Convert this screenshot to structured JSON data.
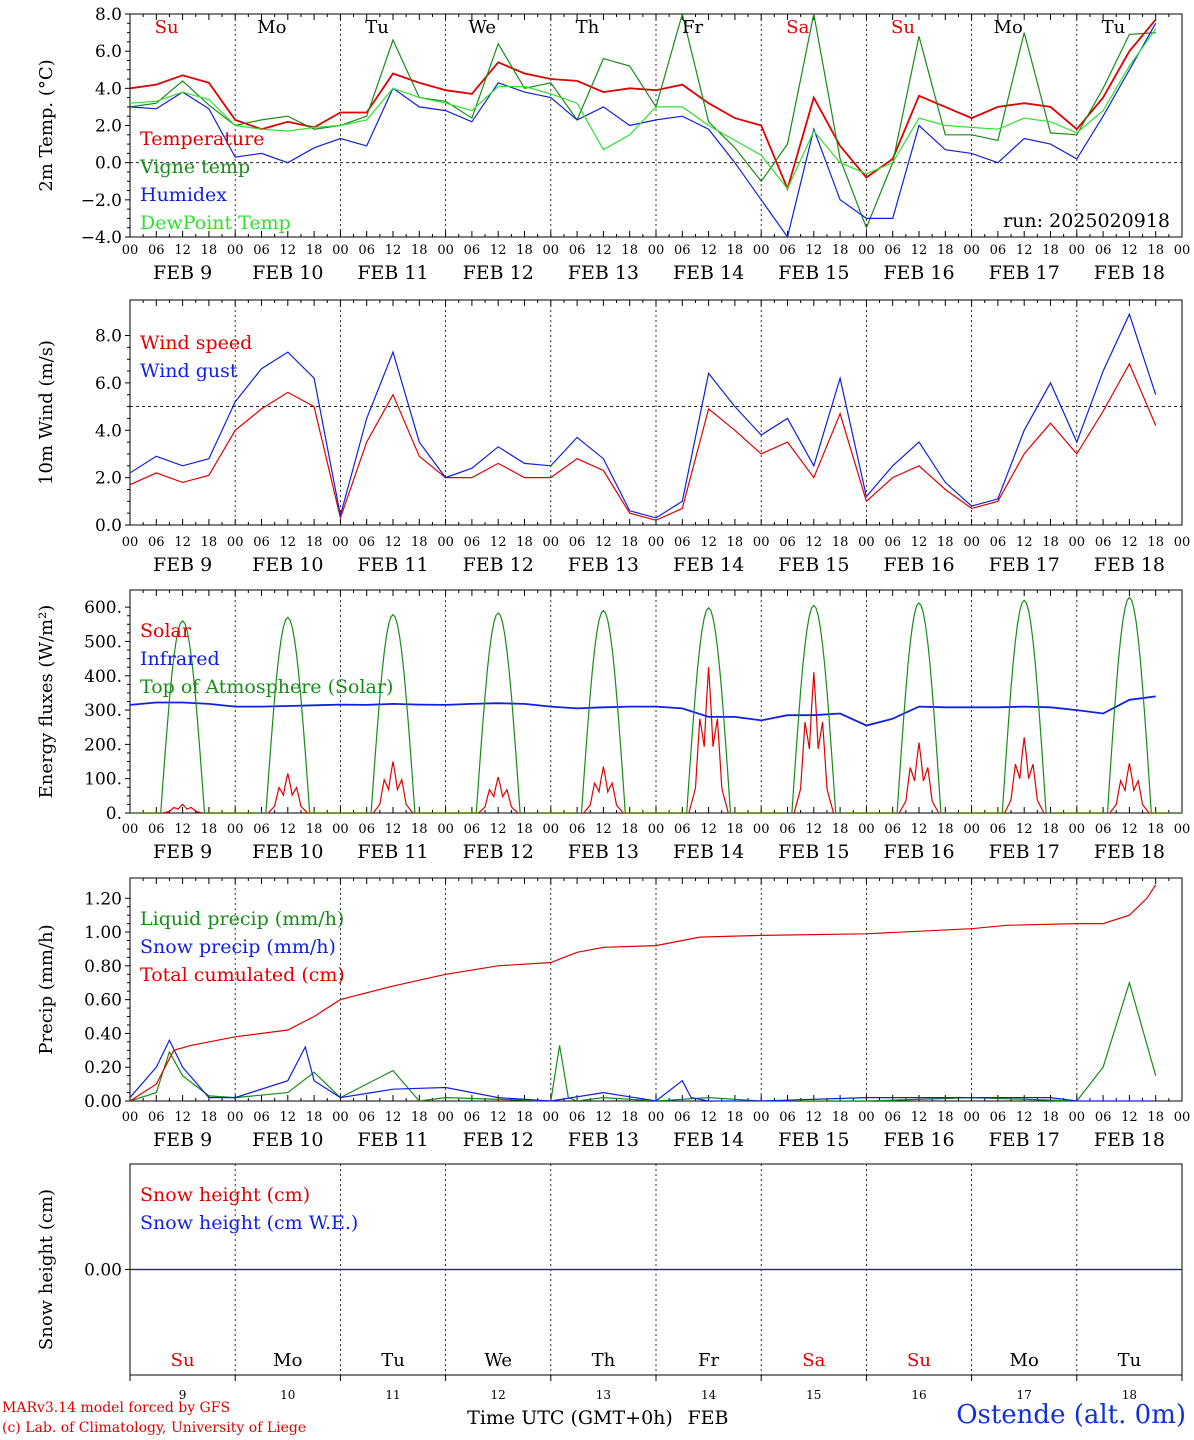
{
  "run_label": "run: 2025020918",
  "x_axis": {
    "hour_labels": [
      "00",
      "06",
      "12",
      "18"
    ],
    "date_labels": [
      "FEB  9",
      "FEB 10",
      "FEB 11",
      "FEB 12",
      "FEB 13",
      "FEB 14",
      "FEB 15",
      "FEB 16",
      "FEB 17",
      "FEB 18"
    ],
    "day_names": [
      "Su",
      "Mo",
      "Tu",
      "We",
      "Th",
      "Fr",
      "Sa",
      "Su",
      "Mo",
      "Tu"
    ],
    "day_name_colors": [
      "#e00000",
      "#000000",
      "#000000",
      "#000000",
      "#000000",
      "#000000",
      "#e00000",
      "#e00000",
      "#000000",
      "#000000"
    ],
    "day_numbers": [
      "9",
      "10",
      "11",
      "12",
      "13",
      "14",
      "15",
      "16",
      "17",
      "18"
    ],
    "bottom_label": "Time UTC (GMT+0h)",
    "month_label": "FEB"
  },
  "footer": {
    "line1": "MARv3.14 model forced by GFS",
    "line2": "(c) Lab. of Climatology, University of Liege",
    "station": "Ostende (alt. 0m)"
  },
  "colors": {
    "red": "#e00000",
    "darkgreen": "#188c18",
    "blue": "#1020e0",
    "lightgreen": "#30e030"
  },
  "chart_data": [
    {
      "type": "line",
      "ylabel": "2m Temp. (°C)",
      "ylim": [
        -4,
        8
      ],
      "yticks": [
        "−4.0",
        "−2.0",
        "0.0",
        "2.0",
        "4.0",
        "6.0",
        "8.0"
      ],
      "ytick_values": [
        -4,
        -2,
        0,
        2,
        4,
        6,
        8
      ],
      "reference_line": 0,
      "x": [
        0,
        6,
        12,
        18,
        24,
        30,
        36,
        42,
        48,
        54,
        60,
        66,
        72,
        78,
        84,
        90,
        96,
        102,
        108,
        114,
        120,
        126,
        132,
        138,
        144,
        150,
        156,
        162,
        168,
        174,
        180,
        186,
        192,
        198,
        204,
        210,
        216,
        222,
        228,
        234
      ],
      "series": [
        {
          "name": "Temperature",
          "color": "#e00000",
          "values": [
            4.0,
            4.2,
            4.7,
            4.3,
            2.3,
            1.8,
            2.2,
            1.9,
            2.7,
            2.7,
            4.8,
            4.3,
            3.9,
            3.7,
            5.4,
            4.8,
            4.5,
            4.4,
            3.8,
            4.0,
            3.9,
            4.2,
            3.2,
            2.4,
            2.0,
            -1.4,
            3.5,
            0.9,
            -0.8,
            0.2,
            3.6,
            3.0,
            2.4,
            3.0,
            3.2,
            3.0,
            1.8,
            3.5,
            6.0,
            7.7
          ]
        },
        {
          "name": "Vigne temp",
          "color": "#188c18",
          "values": [
            3.0,
            3.2,
            4.4,
            3.1,
            2.0,
            2.3,
            2.5,
            1.8,
            2.0,
            2.5,
            6.6,
            3.5,
            3.3,
            2.4,
            6.4,
            4.0,
            4.3,
            2.3,
            5.6,
            5.2,
            3.0,
            8.0,
            2.2,
            0.8,
            -1.0,
            1.0,
            8.0,
            0.2,
            -3.5,
            0.0,
            6.8,
            1.5,
            1.5,
            1.2,
            7.0,
            1.6,
            1.5,
            4.0,
            6.9,
            7.0
          ]
        },
        {
          "name": "Humidex",
          "color": "#1020e0",
          "values": [
            3.0,
            2.9,
            3.8,
            2.9,
            0.3,
            0.5,
            0.0,
            0.8,
            1.3,
            0.9,
            4.0,
            3.0,
            2.8,
            2.2,
            4.3,
            3.8,
            3.5,
            2.3,
            3.0,
            2.0,
            2.3,
            2.5,
            1.8,
            0.0,
            -2.0,
            -4.0,
            1.8,
            -2.0,
            -3.0,
            -3.0,
            2.0,
            0.7,
            0.5,
            0.0,
            1.3,
            1.0,
            0.2,
            2.5,
            5.0,
            7.5
          ]
        },
        {
          "name": "DewPoint Temp",
          "color": "#30e030",
          "values": [
            3.2,
            3.3,
            3.8,
            3.4,
            2.0,
            1.8,
            1.7,
            1.9,
            2.0,
            2.3,
            4.0,
            3.5,
            3.2,
            2.8,
            4.1,
            4.1,
            3.7,
            3.2,
            0.7,
            1.5,
            3.0,
            3.0,
            2.0,
            1.2,
            0.4,
            -1.4,
            1.7,
            0.0,
            -0.6,
            0.0,
            2.4,
            2.0,
            1.9,
            1.8,
            2.4,
            2.2,
            1.6,
            2.8,
            5.2,
            7.2
          ]
        }
      ]
    },
    {
      "type": "line",
      "ylabel": "10m Wind (m/s)",
      "ylim": [
        0,
        9.5
      ],
      "yticks": [
        "0.0",
        "2.0",
        "4.0",
        "6.0",
        "8.0"
      ],
      "ytick_values": [
        0,
        2,
        4,
        6,
        8
      ],
      "reference_line": 5,
      "x": [
        0,
        6,
        12,
        18,
        24,
        30,
        36,
        42,
        48,
        54,
        60,
        66,
        72,
        78,
        84,
        90,
        96,
        102,
        108,
        114,
        120,
        126,
        132,
        138,
        144,
        150,
        156,
        162,
        168,
        174,
        180,
        186,
        192,
        198,
        204,
        210,
        216,
        222,
        228,
        234
      ],
      "series": [
        {
          "name": "Wind speed",
          "color": "#e00000",
          "values": [
            1.7,
            2.2,
            1.8,
            2.1,
            4.0,
            4.9,
            5.6,
            5.0,
            0.3,
            3.5,
            5.5,
            2.9,
            2.0,
            2.0,
            2.6,
            2.0,
            2.0,
            2.8,
            2.3,
            0.5,
            0.2,
            0.7,
            4.9,
            4.0,
            3.0,
            3.5,
            2.0,
            4.7,
            1.0,
            2.0,
            2.5,
            1.5,
            0.7,
            1.0,
            3.0,
            4.3,
            3.0,
            4.8,
            6.8,
            4.2
          ]
        },
        {
          "name": "Wind gust",
          "color": "#1020e0",
          "values": [
            2.2,
            2.9,
            2.5,
            2.8,
            5.2,
            6.6,
            7.3,
            6.2,
            0.4,
            4.5,
            7.3,
            3.5,
            2.0,
            2.4,
            3.3,
            2.6,
            2.5,
            3.7,
            2.8,
            0.6,
            0.3,
            1.0,
            6.4,
            5.0,
            3.8,
            4.5,
            2.5,
            6.2,
            1.2,
            2.5,
            3.5,
            1.8,
            0.8,
            1.1,
            4.0,
            6.0,
            3.5,
            6.5,
            8.9,
            5.5
          ]
        }
      ]
    },
    {
      "type": "line",
      "ylabel": "Energy fluxes (W/m²)",
      "ylim": [
        0,
        650
      ],
      "yticks": [
        "0.",
        "100.",
        "200.",
        "300.",
        "400.",
        "500.",
        "600."
      ],
      "ytick_values": [
        0,
        100,
        200,
        300,
        400,
        500,
        600
      ],
      "series": [
        {
          "name": "Solar",
          "color": "#e00000",
          "peaks": [
            25,
            115,
            150,
            105,
            135,
            425,
            410,
            205,
            220,
            145
          ]
        },
        {
          "name": "Infrared",
          "color": "#1020e0",
          "x": [
            0,
            6,
            12,
            18,
            24,
            30,
            36,
            42,
            48,
            54,
            60,
            66,
            72,
            78,
            84,
            90,
            96,
            102,
            108,
            114,
            120,
            126,
            132,
            138,
            144,
            150,
            156,
            162,
            168,
            174,
            180,
            186,
            192,
            198,
            204,
            210,
            216,
            222,
            228,
            234
          ],
          "values": [
            315,
            322,
            322,
            318,
            310,
            310,
            312,
            314,
            316,
            315,
            318,
            316,
            315,
            318,
            320,
            318,
            310,
            305,
            308,
            310,
            310,
            305,
            280,
            280,
            270,
            285,
            285,
            290,
            255,
            275,
            310,
            308,
            308,
            308,
            310,
            308,
            300,
            290,
            330,
            340
          ]
        },
        {
          "name": "Top of Atmosphere (Solar)",
          "color": "#188c18",
          "peaks": [
            560,
            570,
            578,
            583,
            590,
            598,
            605,
            612,
            620,
            628
          ]
        }
      ]
    },
    {
      "type": "line",
      "ylabel": "Precip (mm/h)",
      "ylim": [
        0,
        1.32
      ],
      "yticks": [
        "0.00",
        "0.20",
        "0.40",
        "0.60",
        "0.80",
        "1.00",
        "1.20"
      ],
      "ytick_values": [
        0,
        0.2,
        0.4,
        0.6,
        0.8,
        1.0,
        1.2
      ],
      "series": [
        {
          "name": "Liquid precip (mm/h)",
          "color": "#188c18",
          "x": [
            0,
            6,
            9,
            12,
            18,
            24,
            36,
            42,
            48,
            54,
            60,
            66,
            72,
            96,
            98,
            100,
            102,
            108,
            120,
            132,
            144,
            168,
            192,
            216,
            222,
            228,
            234
          ],
          "values": [
            0,
            0.05,
            0.29,
            0.15,
            0.03,
            0.02,
            0.05,
            0.17,
            0.02,
            0.1,
            0.18,
            0,
            0.02,
            0,
            0.33,
            0.02,
            0,
            0.02,
            0,
            0.02,
            0,
            0,
            0.02,
            0,
            0.2,
            0.7,
            0.15
          ]
        },
        {
          "name": "Snow precip (mm/h)",
          "color": "#1020e0",
          "x": [
            0,
            6,
            9,
            12,
            18,
            24,
            36,
            40,
            42,
            48,
            60,
            72,
            84,
            96,
            108,
            120,
            126,
            128,
            132,
            144,
            168,
            192,
            210,
            216,
            234
          ],
          "values": [
            0.02,
            0.2,
            0.36,
            0.2,
            0.02,
            0.02,
            0.12,
            0.32,
            0.12,
            0.02,
            0.07,
            0.08,
            0.02,
            0.0,
            0.05,
            0.0,
            0.12,
            0.02,
            0.0,
            0.0,
            0.02,
            0.02,
            0.02,
            0,
            0
          ]
        },
        {
          "name": "Total cumulated (cm)",
          "color": "#e00000",
          "x": [
            0,
            6,
            10,
            14,
            24,
            36,
            42,
            48,
            60,
            72,
            84,
            96,
            102,
            108,
            120,
            126,
            130,
            144,
            168,
            192,
            200,
            216,
            222,
            228,
            232,
            234
          ],
          "values": [
            0,
            0.1,
            0.3,
            0.33,
            0.38,
            0.42,
            0.5,
            0.6,
            0.68,
            0.75,
            0.8,
            0.82,
            0.88,
            0.91,
            0.92,
            0.95,
            0.97,
            0.98,
            0.99,
            1.02,
            1.04,
            1.05,
            1.05,
            1.1,
            1.2,
            1.28
          ]
        }
      ]
    },
    {
      "type": "line",
      "ylabel": "Snow height (cm)",
      "yticks": [
        "0.00"
      ],
      "ytick_values": [
        0
      ],
      "series": [
        {
          "name": "Snow height (cm)",
          "color": "#e00000",
          "values": [
            0
          ]
        },
        {
          "name": "Snow height (cm W.E.)",
          "color": "#1020e0",
          "values": [
            0
          ]
        }
      ]
    }
  ]
}
